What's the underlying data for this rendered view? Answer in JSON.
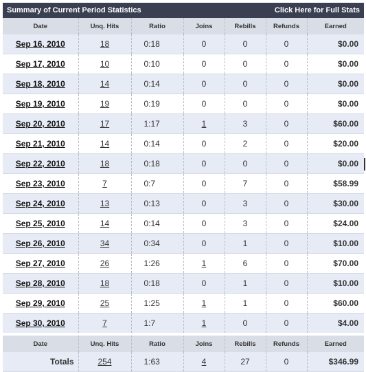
{
  "header": {
    "title": "Summary of Current Period Statistics",
    "full_stats_link": "Click Here for Full Stats"
  },
  "columns": [
    "Date",
    "Unq. Hits",
    "Ratio",
    "Joins",
    "Rebills",
    "Refunds",
    "Earned"
  ],
  "rows": [
    {
      "date": "Sep 16, 2010",
      "hits": "18",
      "ratio": "0:18",
      "joins": "0",
      "rebills": "0",
      "refunds": "0",
      "earned": "$0.00"
    },
    {
      "date": "Sep 17, 2010",
      "hits": "10",
      "ratio": "0:10",
      "joins": "0",
      "rebills": "0",
      "refunds": "0",
      "earned": "$0.00"
    },
    {
      "date": "Sep 18, 2010",
      "hits": "14",
      "ratio": "0:14",
      "joins": "0",
      "rebills": "0",
      "refunds": "0",
      "earned": "$0.00"
    },
    {
      "date": "Sep 19, 2010",
      "hits": "19",
      "ratio": "0:19",
      "joins": "0",
      "rebills": "0",
      "refunds": "0",
      "earned": "$0.00"
    },
    {
      "date": "Sep 20, 2010",
      "hits": "17",
      "ratio": "1:17",
      "joins": "1",
      "rebills": "3",
      "refunds": "0",
      "earned": "$60.00"
    },
    {
      "date": "Sep 21, 2010",
      "hits": "14",
      "ratio": "0:14",
      "joins": "0",
      "rebills": "2",
      "refunds": "0",
      "earned": "$20.00"
    },
    {
      "date": "Sep 22, 2010",
      "hits": "18",
      "ratio": "0:18",
      "joins": "0",
      "rebills": "0",
      "refunds": "0",
      "earned": "$0.00"
    },
    {
      "date": "Sep 23, 2010",
      "hits": "7",
      "ratio": "0:7",
      "joins": "0",
      "rebills": "7",
      "refunds": "0",
      "earned": "$58.99"
    },
    {
      "date": "Sep 24, 2010",
      "hits": "13",
      "ratio": "0:13",
      "joins": "0",
      "rebills": "3",
      "refunds": "0",
      "earned": "$30.00"
    },
    {
      "date": "Sep 25, 2010",
      "hits": "14",
      "ratio": "0:14",
      "joins": "0",
      "rebills": "3",
      "refunds": "0",
      "earned": "$24.00"
    },
    {
      "date": "Sep 26, 2010",
      "hits": "34",
      "ratio": "0:34",
      "joins": "0",
      "rebills": "1",
      "refunds": "0",
      "earned": "$10.00"
    },
    {
      "date": "Sep 27, 2010",
      "hits": "26",
      "ratio": "1:26",
      "joins": "1",
      "rebills": "6",
      "refunds": "0",
      "earned": "$70.00"
    },
    {
      "date": "Sep 28, 2010",
      "hits": "18",
      "ratio": "0:18",
      "joins": "0",
      "rebills": "1",
      "refunds": "0",
      "earned": "$10.00"
    },
    {
      "date": "Sep 29, 2010",
      "hits": "25",
      "ratio": "1:25",
      "joins": "1",
      "rebills": "1",
      "refunds": "0",
      "earned": "$60.00"
    },
    {
      "date": "Sep 30, 2010",
      "hits": "7",
      "ratio": "1:7",
      "joins": "1",
      "rebills": "0",
      "refunds": "0",
      "earned": "$4.00"
    }
  ],
  "totals": {
    "label": "Totals",
    "hits": "254",
    "ratio": "1:63",
    "joins": "4",
    "rebills": "27",
    "refunds": "0",
    "earned": "$346.99"
  }
}
